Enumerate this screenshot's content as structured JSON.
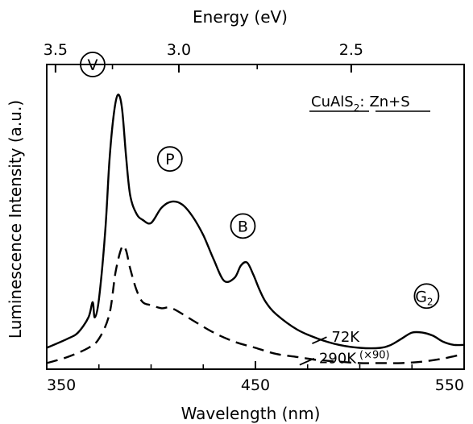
{
  "chart_data": {
    "type": "line",
    "xlabel": "Wavelength (nm)",
    "ylabel": "Luminescence Intensity (a.u.)",
    "top_axis_label": "Energy (eV)",
    "xlim": [
      350,
      550
    ],
    "ylim": [
      0,
      1.0
    ],
    "x_ticks": [
      "350",
      "450",
      "550"
    ],
    "top_ticks": [
      "3.5",
      "3.0",
      "2.5"
    ],
    "top_tick_wavelengths": [
      354.2,
      413.3,
      495.9
    ],
    "y_tick_labels": false,
    "sample_label": {
      "main": "CuAlS",
      "sub": "2",
      "rest": "Zn+S"
    },
    "series": [
      {
        "name": "72K",
        "style": "solid",
        "x": [
          350,
          360,
          365,
          370,
          372,
          373,
          375,
          378,
          380,
          382,
          384,
          386,
          388,
          390,
          393,
          396,
          400,
          405,
          410,
          415,
          420,
          425,
          430,
          435,
          440,
          443,
          446,
          449,
          452,
          455,
          460,
          470,
          480,
          490,
          500,
          510,
          515,
          520,
          525,
          530,
          535,
          540,
          545,
          550
        ],
        "y": [
          0.07,
          0.1,
          0.12,
          0.17,
          0.22,
          0.17,
          0.23,
          0.45,
          0.68,
          0.83,
          0.9,
          0.86,
          0.7,
          0.57,
          0.51,
          0.49,
          0.48,
          0.53,
          0.55,
          0.54,
          0.5,
          0.44,
          0.36,
          0.29,
          0.3,
          0.34,
          0.35,
          0.31,
          0.26,
          0.22,
          0.18,
          0.13,
          0.1,
          0.08,
          0.07,
          0.07,
          0.08,
          0.1,
          0.12,
          0.12,
          0.11,
          0.09,
          0.08,
          0.08
        ]
      },
      {
        "name": "290K (×90)",
        "style": "dashed",
        "x": [
          350,
          360,
          370,
          375,
          380,
          383,
          386,
          388,
          390,
          393,
          396,
          400,
          405,
          410,
          420,
          430,
          440,
          450,
          460,
          470,
          480,
          490,
          500,
          510,
          520,
          530,
          540,
          550
        ],
        "y": [
          0.02,
          0.04,
          0.07,
          0.1,
          0.18,
          0.32,
          0.4,
          0.39,
          0.33,
          0.26,
          0.22,
          0.21,
          0.2,
          0.2,
          0.16,
          0.12,
          0.09,
          0.07,
          0.05,
          0.04,
          0.03,
          0.025,
          0.02,
          0.02,
          0.02,
          0.025,
          0.035,
          0.05
        ]
      }
    ],
    "series_labels": [
      {
        "series": 0,
        "text": "72K",
        "x": 488,
        "y": 0.1
      },
      {
        "series": 1,
        "text": "290K",
        "suffix": "(×90)",
        "x": 482,
        "y": 0.03
      }
    ],
    "annotations": [
      {
        "text": "V",
        "x": 372,
        "y": 1.0
      },
      {
        "text": "P",
        "x": 409,
        "y": 0.69
      },
      {
        "text": "B",
        "x": 444,
        "y": 0.47
      },
      {
        "text": "G",
        "sub": "2",
        "x": 532,
        "y": 0.24
      }
    ]
  }
}
